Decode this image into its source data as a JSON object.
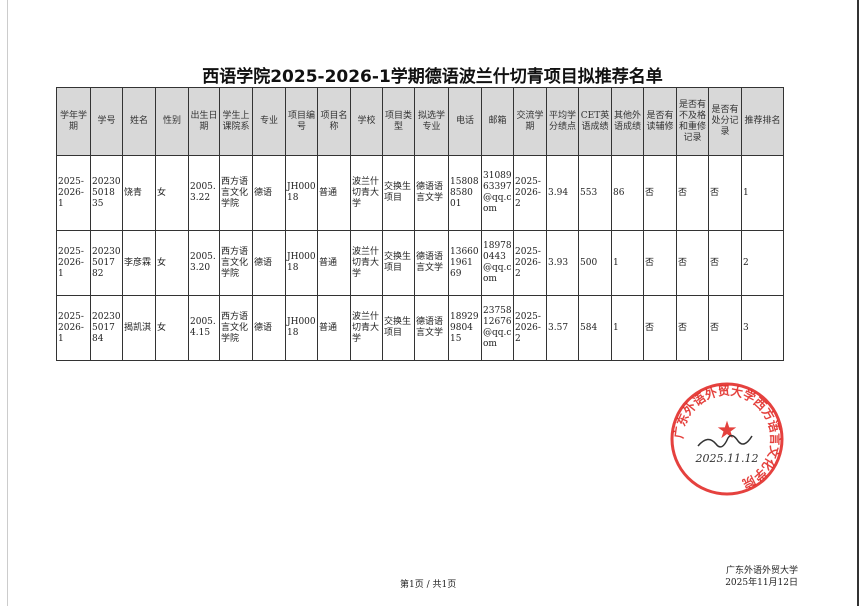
{
  "title": "西语学院2025-2026-1学期德语波兰什切青项目拟推荐名单",
  "table": {
    "headers": [
      "学年学期",
      "学号",
      "姓名",
      "性别",
      "出生日期",
      "学生上课院系",
      "专业",
      "项目编号",
      "项目名称",
      "学校",
      "项目类型",
      "拟选学专业",
      "电话",
      "邮箱",
      "交流学期",
      "平均学分绩点",
      "CET英语成绩",
      "其他外语成绩",
      "是否有读辅修",
      "是否有不及格和重修记录",
      "是否有处分记录",
      "推荐排名"
    ],
    "rows": [
      [
        "2025-2026-1",
        "202305018 35",
        "饶青",
        "女",
        "2005.3.22",
        "西方语言文化学院",
        "德语",
        "JH00018",
        "普通",
        "波兰什切青大学",
        "交换生项目",
        "德语语言文学",
        "158088580 01",
        "3108963397@qq.com",
        "2025-2026-2",
        "3.94",
        "553",
        "86",
        "否",
        "否",
        "否",
        "1"
      ],
      [
        "2025-2026-1",
        "202305017 82",
        "李彦霖",
        "女",
        "2005.3.20",
        "西方语言文化学院",
        "德语",
        "JH00018",
        "普通",
        "波兰什切青大学",
        "交换生项目",
        "德语语言文学",
        "136601961 69",
        "189780443@qq.com",
        "2025-2026-2",
        "3.93",
        "500",
        "1",
        "否",
        "否",
        "否",
        "2"
      ],
      [
        "2025-2026-1",
        "202305017 84",
        "揭凯淇",
        "女",
        "2005.4.15",
        "西方语言文化学院",
        "德语",
        "JH00018",
        "普通",
        "波兰什切青大学",
        "交换生项目",
        "德语语言文学",
        "189299804 15",
        "2375812676@qq.com",
        "2025-2026-2",
        "3.57",
        "584",
        "1",
        "否",
        "否",
        "否",
        "3"
      ]
    ]
  },
  "footer": {
    "page": "第1页 / 共1页",
    "org": "广东外语外贸大学",
    "date": "2025年11月12日"
  },
  "stamp": {
    "text": "广东外语外贸大学西方语言文化学院",
    "handwritten_date": "2025.11.12",
    "color": "#e0201c"
  }
}
